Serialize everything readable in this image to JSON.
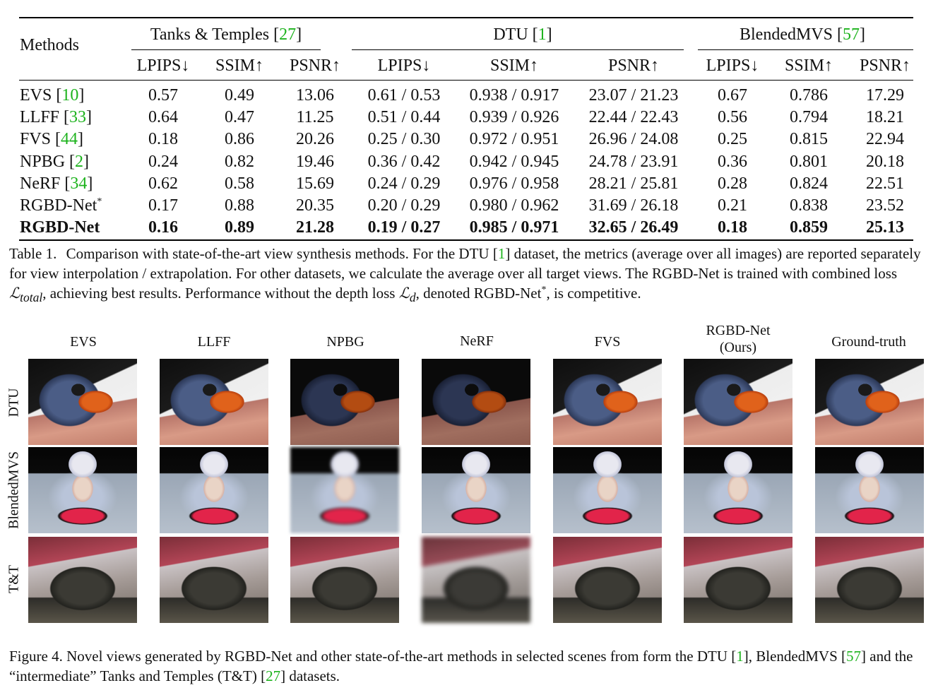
{
  "table": {
    "methods_header": "Methods",
    "groups": [
      {
        "name": "Tanks & Temples",
        "ref": "27"
      },
      {
        "name": "DTU",
        "ref": "1"
      },
      {
        "name": "BlendedMVS",
        "ref": "57"
      }
    ],
    "metrics": [
      "LPIPS↓",
      "SSIM↑",
      "PSNR↑",
      "LPIPS↓",
      "SSIM↑",
      "PSNR↑",
      "LPIPS↓",
      "SSIM↑",
      "PSNR↑"
    ],
    "rows": [
      {
        "method": "EVS",
        "ref": "10",
        "values": [
          "0.57",
          "0.49",
          "13.06",
          "0.61 / 0.53",
          "0.938 / 0.917",
          "23.07 / 21.23",
          "0.67",
          "0.786",
          "17.29"
        ]
      },
      {
        "method": "LLFF",
        "ref": "33",
        "values": [
          "0.64",
          "0.47",
          "11.25",
          "0.51 / 0.44",
          "0.939 / 0.926",
          "22.44 / 22.43",
          "0.56",
          "0.794",
          "18.21"
        ]
      },
      {
        "method": "FVS",
        "ref": "44",
        "values": [
          "0.18",
          "0.86",
          "20.26",
          "0.25 / 0.30",
          "0.972 / 0.951",
          "26.96 / 24.08",
          "0.25",
          "0.815",
          "22.94"
        ]
      },
      {
        "method": "NPBG",
        "ref": "2",
        "values": [
          "0.24",
          "0.82",
          "19.46",
          "0.36 / 0.42",
          "0.942 / 0.945",
          "24.78 / 23.91",
          "0.36",
          "0.801",
          "20.18"
        ]
      },
      {
        "method": "NeRF",
        "ref": "34",
        "values": [
          "0.62",
          "0.58",
          "15.69",
          "0.24 / 0.29",
          "0.976 / 0.958",
          "28.21 / 25.81",
          "0.28",
          "0.824",
          "22.51"
        ]
      },
      {
        "method": "RGBD-Net",
        "sup": "*",
        "values": [
          "0.17",
          "0.88",
          "20.35",
          "0.20 / 0.29",
          "0.980 / 0.962",
          "31.69 / 26.18",
          "0.21",
          "0.838",
          "23.52"
        ]
      },
      {
        "method": "RGBD-Net",
        "bold": true,
        "values": [
          "0.16",
          "0.89",
          "21.28",
          "0.19 / 0.27",
          "0.985 / 0.971",
          "32.65 / 26.49",
          "0.18",
          "0.859",
          "25.13"
        ]
      }
    ]
  },
  "table_caption": {
    "label": "Table 1.",
    "part1": "Comparison with state-of-the-art view synthesis methods. For the DTU [",
    "ref1": "1",
    "part2": "] dataset, the metrics (average over all images) are reported separately for view interpolation / extrapolation. For other datasets, we calculate the average over all target views. The RGBD-Net is trained with combined loss ",
    "math_total": "ℒ",
    "math_total_sub": "total",
    "part3": ", achieving best results. Performance without the depth loss ",
    "math_d": "ℒ",
    "math_d_sub": "d",
    "part4": ", denoted RGBD-Net",
    "part4_sup": "*",
    "part5": ", is competitive."
  },
  "figure": {
    "columns": [
      "EVS",
      "LLFF",
      "NPBG",
      "NeRF",
      "FVS",
      "RGBD-Net",
      "Ground-truth"
    ],
    "ours_suffix": "(Ours)",
    "rows": [
      "DTU",
      "BlendedMVS",
      "T&T"
    ]
  },
  "figure_caption": {
    "part1": "Figure 4. Novel views generated by RGBD-Net and other state-of-the-art methods in selected scenes from form the DTU [",
    "ref1": "1",
    "part2": "], BlendedMVS [",
    "ref2": "57",
    "part3": "] and the “intermediate” Tanks and Temples (T&T) [",
    "ref3": "27",
    "part4": "] datasets."
  }
}
